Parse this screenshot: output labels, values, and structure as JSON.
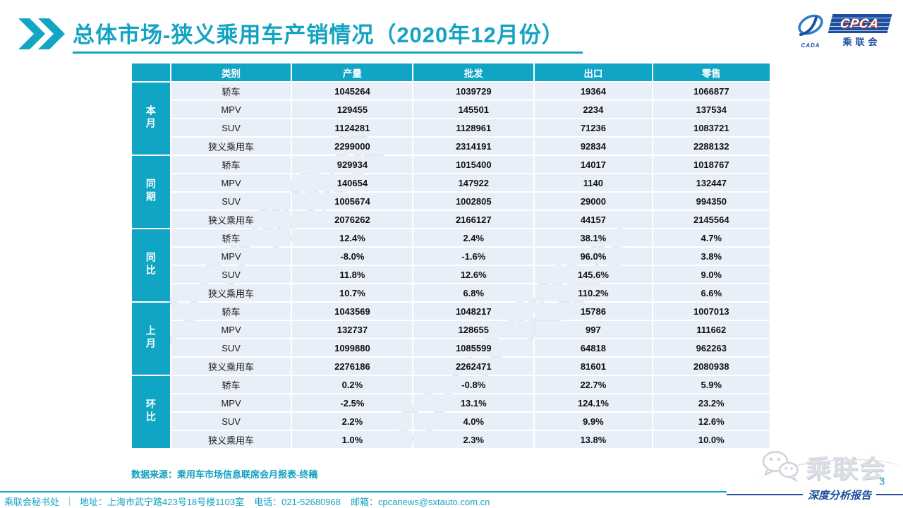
{
  "title": "总体市场-狭义乘用车产销情况（2020年12月份）",
  "logo": {
    "cpca": "CPCA",
    "cada": "CADA",
    "cn": "乘联会"
  },
  "table": {
    "headers": [
      "类别",
      "产量",
      "批发",
      "出口",
      "零售"
    ],
    "groups": [
      {
        "label": "本月",
        "rows": [
          [
            "轿车",
            "1045264",
            "1039729",
            "19364",
            "1066877"
          ],
          [
            "MPV",
            "129455",
            "145501",
            "2234",
            "137534"
          ],
          [
            "SUV",
            "1124281",
            "1128961",
            "71236",
            "1083721"
          ],
          [
            "狭义乘用车",
            "2299000",
            "2314191",
            "92834",
            "2288132"
          ]
        ]
      },
      {
        "label": "同期",
        "rows": [
          [
            "轿车",
            "929934",
            "1015400",
            "14017",
            "1018767"
          ],
          [
            "MPV",
            "140654",
            "147922",
            "1140",
            "132447"
          ],
          [
            "SUV",
            "1005674",
            "1002805",
            "29000",
            "994350"
          ],
          [
            "狭义乘用车",
            "2076262",
            "2166127",
            "44157",
            "2145564"
          ]
        ]
      },
      {
        "label": "同比",
        "rows": [
          [
            "轿车",
            "12.4%",
            "2.4%",
            "38.1%",
            "4.7%"
          ],
          [
            "MPV",
            "-8.0%",
            "-1.6%",
            "96.0%",
            "3.8%"
          ],
          [
            "SUV",
            "11.8%",
            "12.6%",
            "145.6%",
            "9.0%"
          ],
          [
            "狭义乘用车",
            "10.7%",
            "6.8%",
            "110.2%",
            "6.6%"
          ]
        ]
      },
      {
        "label": "上月",
        "rows": [
          [
            "轿车",
            "1043569",
            "1048217",
            "15786",
            "1007013"
          ],
          [
            "MPV",
            "132737",
            "128655",
            "997",
            "111662"
          ],
          [
            "SUV",
            "1099880",
            "1085599",
            "64818",
            "962263"
          ],
          [
            "狭义乘用车",
            "2276186",
            "2262471",
            "81601",
            "2080938"
          ]
        ]
      },
      {
        "label": "环比",
        "rows": [
          [
            "轿车",
            "0.2%",
            "-0.8%",
            "22.7%",
            "5.9%"
          ],
          [
            "MPV",
            "-2.5%",
            "13.1%",
            "124.1%",
            "23.2%"
          ],
          [
            "SUV",
            "2.2%",
            "4.0%",
            "9.9%",
            "12.6%"
          ],
          [
            "狭义乘用车",
            "1.0%",
            "2.3%",
            "13.8%",
            "10.0%"
          ]
        ]
      }
    ]
  },
  "source_note": "数据来源：乘用车市场信息联席会月报表-终稿",
  "footer": {
    "org": "乘联会秘书处",
    "address": "地址：上海市武宁路423号18号楼1103室",
    "phone": "电话：021-52680968",
    "email": "邮箱：cpcanews@sxtauto.com.cn"
  },
  "bottom_right": {
    "wechat_brand": "乘联会",
    "page_number": "3",
    "report_type": "深度分析报告"
  },
  "watermark": "CPCA乘联会",
  "colors": {
    "teal": "#10A5C4",
    "title_cyan": "#14A3C3",
    "row_bg": "#E9EFF8",
    "navy": "#1F4E9C",
    "page_blue": "#2E9AC9"
  }
}
